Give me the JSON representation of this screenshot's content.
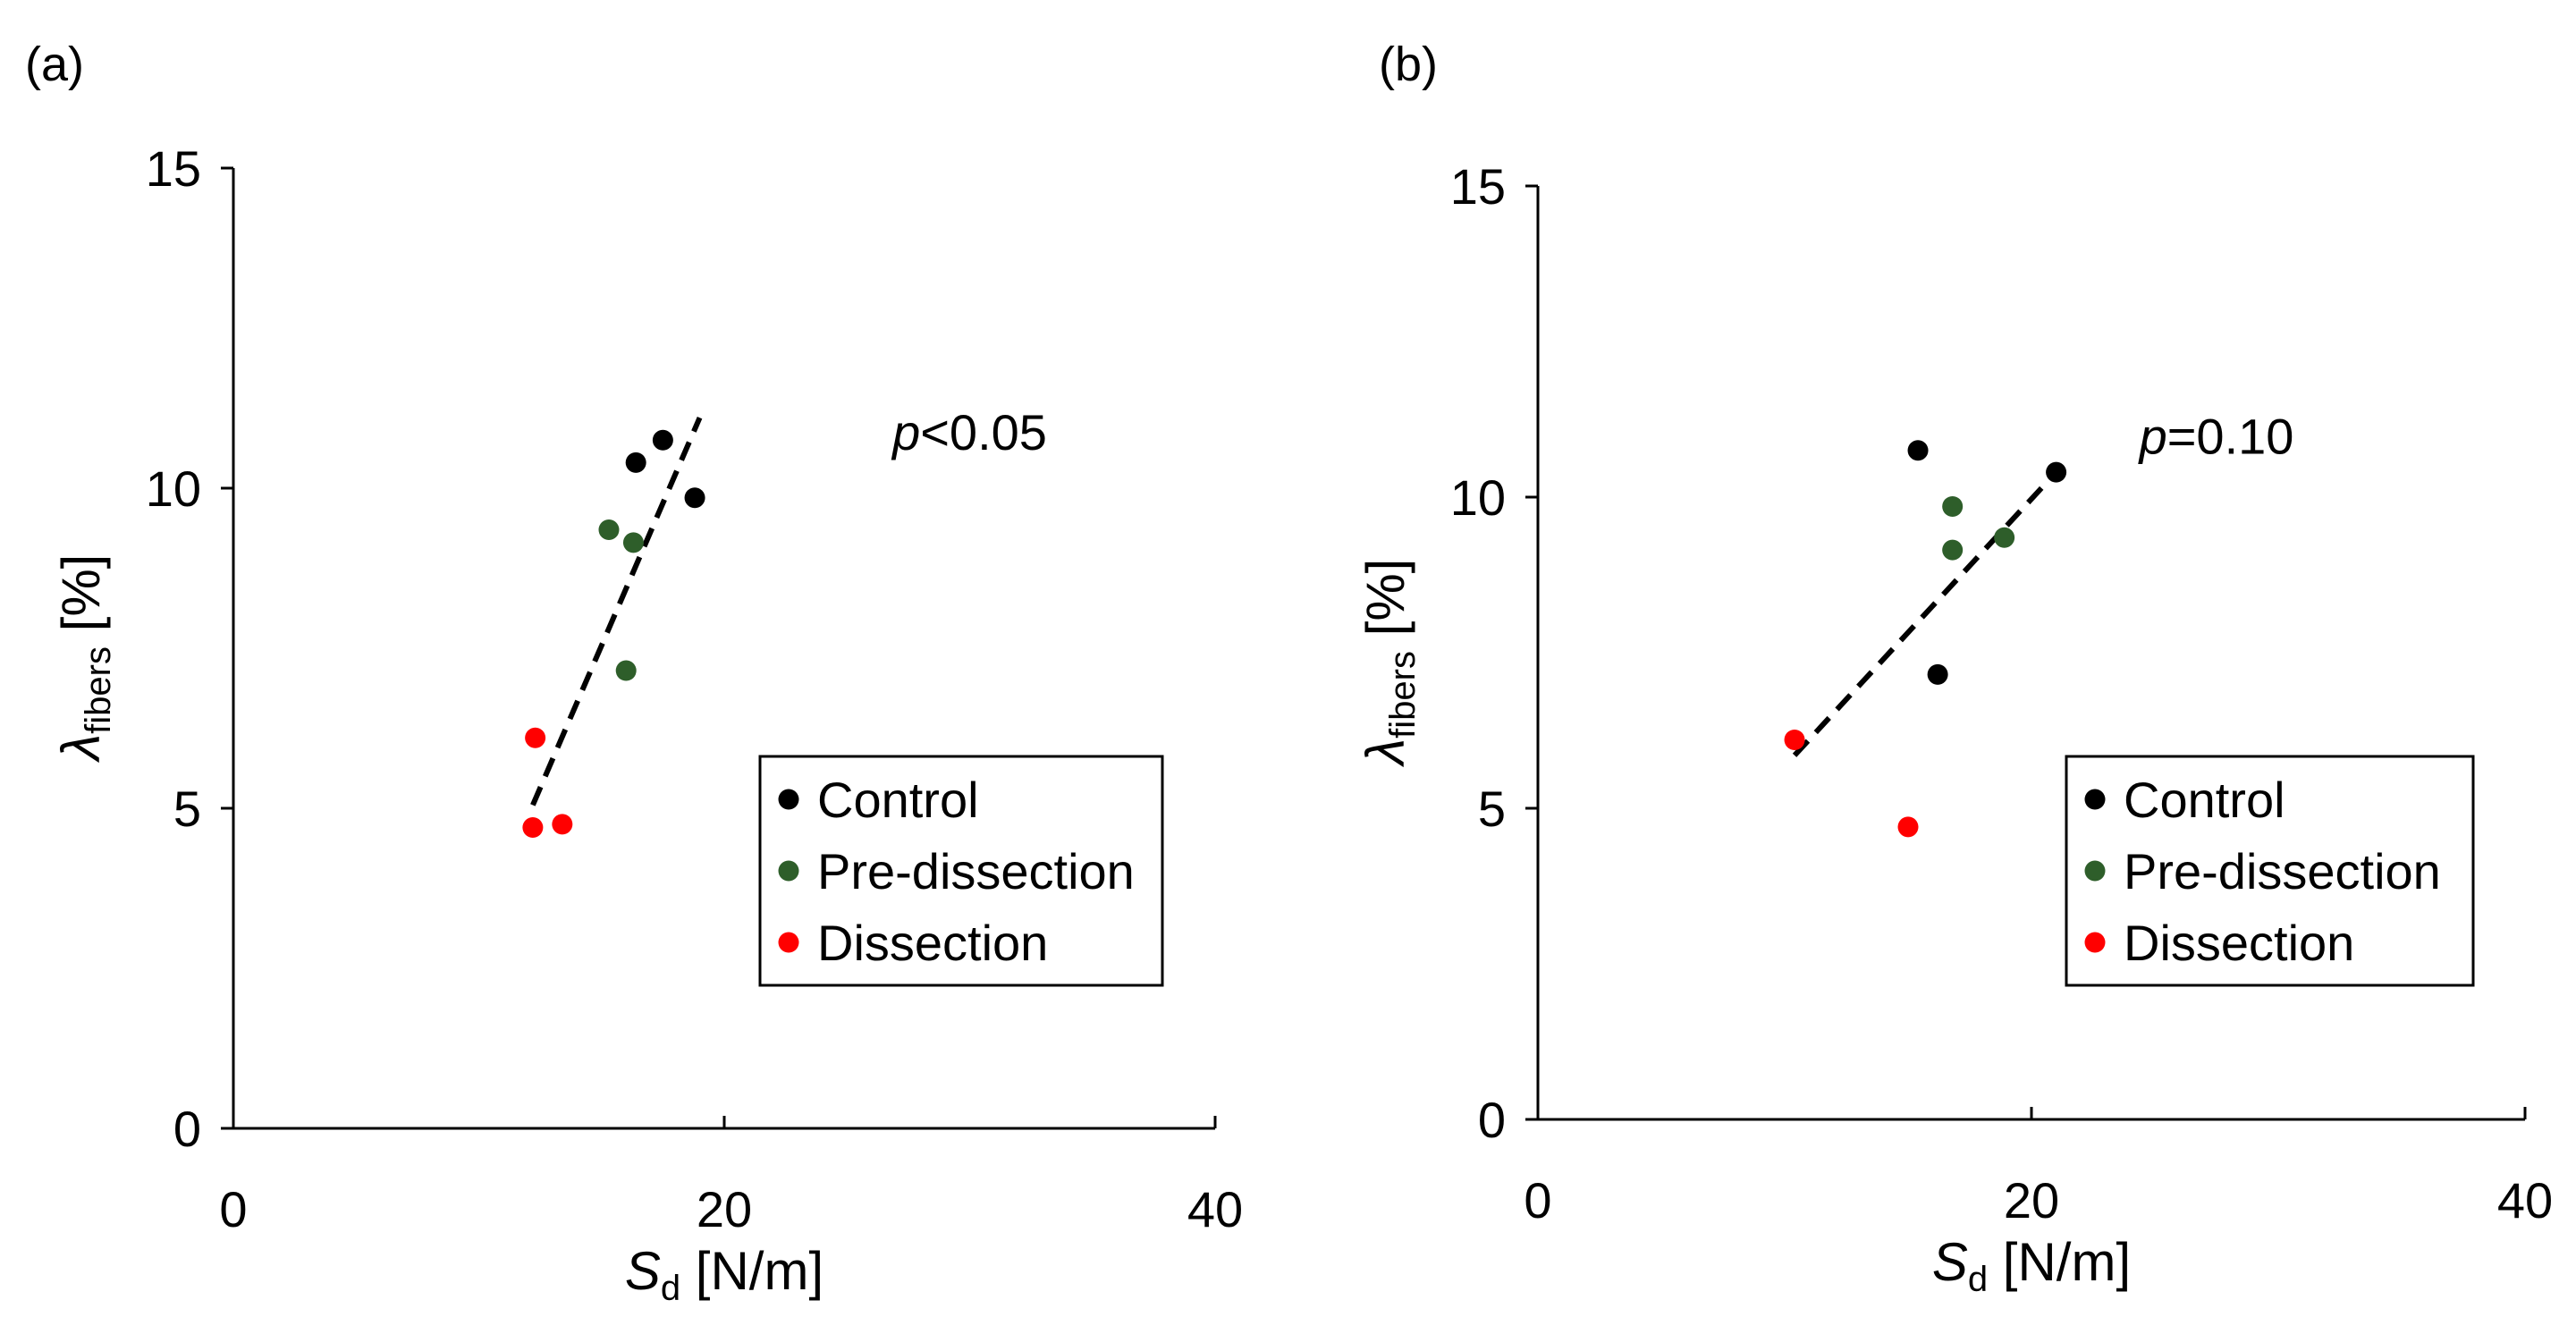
{
  "chart_data": [
    {
      "panel_label": "(a)",
      "type": "scatter",
      "xlim": [
        0,
        40
      ],
      "ylim": [
        0,
        15
      ],
      "x_ticks": [
        0,
        20,
        40
      ],
      "y_ticks": [
        0,
        5,
        10,
        15
      ],
      "x_tick_labels": [
        "0",
        "20",
        "40"
      ],
      "y_tick_labels": [
        "0",
        "5",
        "10",
        "15"
      ],
      "xlabel": {
        "main": "S",
        "sub": "d",
        "unit": " [N/m]"
      },
      "ylabel": {
        "main": "λ",
        "sub": "fibers",
        "unit": " [%]"
      },
      "annotation": {
        "var": "p",
        "rest": "<0.05",
        "x": 30,
        "y": 10.6
      },
      "legend_position": "bottom-right",
      "series": [
        {
          "name": "Control",
          "color": "#000000",
          "points": [
            [
              16.4,
              10.4
            ],
            [
              17.5,
              10.75
            ],
            [
              18.8,
              9.85
            ]
          ]
        },
        {
          "name": "Pre-dissection",
          "color": "#2e5e2a",
          "points": [
            [
              15.3,
              9.35
            ],
            [
              16.3,
              9.15
            ],
            [
              16.0,
              7.15
            ]
          ]
        },
        {
          "name": "Dissection",
          "color": "#ff0000",
          "points": [
            [
              12.3,
              6.1
            ],
            [
              12.2,
              4.7
            ],
            [
              13.4,
              4.75
            ]
          ]
        }
      ],
      "trendline": {
        "x": [
          12.2,
          19.0
        ],
        "y": [
          5.05,
          11.1
        ]
      }
    },
    {
      "panel_label": "(b)",
      "type": "scatter",
      "xlim": [
        0,
        40
      ],
      "ylim": [
        0,
        15
      ],
      "x_ticks": [
        0,
        20,
        40
      ],
      "y_ticks": [
        0,
        5,
        10,
        15
      ],
      "x_tick_labels": [
        "0",
        "20",
        "40"
      ],
      "y_tick_labels": [
        "0",
        "5",
        "10",
        "15"
      ],
      "xlabel": {
        "main": "S",
        "sub": "d",
        "unit": " [N/m]"
      },
      "ylabel": {
        "main": "λ",
        "sub": "fibers",
        "unit": " [%]"
      },
      "annotation": {
        "var": "p",
        "rest": "=0.10",
        "x": 27.5,
        "y": 10.7
      },
      "legend_position": "bottom-right",
      "series": [
        {
          "name": "Control",
          "color": "#000000",
          "points": [
            [
              15.4,
              10.75
            ],
            [
              21.0,
              10.4
            ],
            [
              16.2,
              7.15
            ]
          ]
        },
        {
          "name": "Pre-dissection",
          "color": "#2e5e2a",
          "points": [
            [
              16.8,
              9.85
            ],
            [
              16.8,
              9.15
            ],
            [
              18.9,
              9.35
            ]
          ]
        },
        {
          "name": "Dissection",
          "color": "#ff0000",
          "points": [
            [
              10.4,
              6.1
            ],
            [
              15.0,
              4.7
            ]
          ]
        }
      ],
      "trendline": {
        "x": [
          10.4,
          21.0
        ],
        "y": [
          5.85,
          10.4
        ]
      }
    }
  ]
}
